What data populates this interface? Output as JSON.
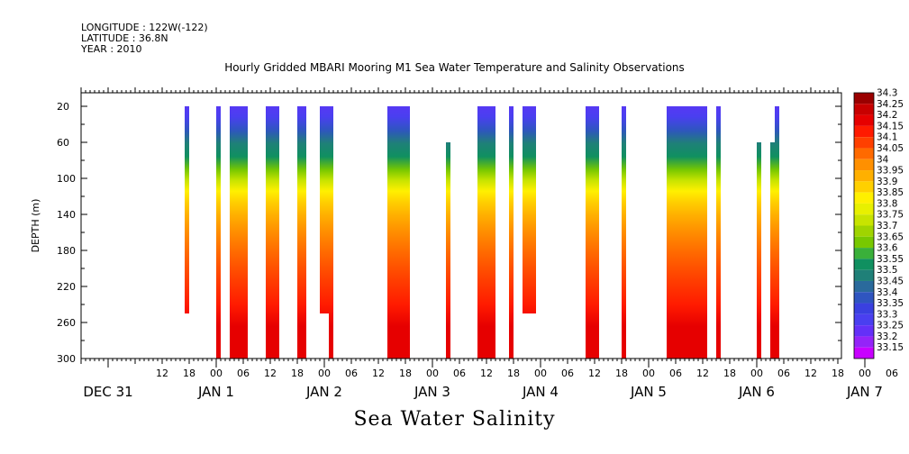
{
  "header": {
    "longitude": "LONGITUDE : 122W(-122)",
    "latitude": "LATITUDE : 36.8N",
    "year": "YEAR : 2010"
  },
  "chart_data": {
    "type": "heatmap",
    "title": "Hourly Gridded MBARI Mooring M1 Sea Water Temperature and Salinity Observations",
    "variable_label": "Sea Water Salinity",
    "ylabel": "DEPTH (m)",
    "ylim": [
      300,
      5
    ],
    "y_ticks": [
      20,
      60,
      100,
      140,
      180,
      220,
      260,
      300
    ],
    "x_hour_ticks": [
      "12",
      "18",
      "00",
      "06",
      "12",
      "18",
      "00",
      "06",
      "12",
      "18",
      "00",
      "06",
      "12",
      "18",
      "00",
      "06",
      "12",
      "18",
      "00",
      "06",
      "12",
      "18",
      "00",
      "06",
      "12",
      "18",
      "00",
      "06",
      "12",
      "18",
      "00",
      "06"
    ],
    "x_day_labels": [
      "DEC 31",
      "JAN  1",
      "JAN  2",
      "JAN  3",
      "JAN  4",
      "JAN  5",
      "JAN  6",
      "JAN  7"
    ],
    "colorbar": {
      "labels": [
        "34.3",
        "34.25",
        "34.2",
        "34.15",
        "34.1",
        "34.05",
        "34",
        "33.95",
        "33.9",
        "33.85",
        "33.8",
        "33.75",
        "33.7",
        "33.65",
        "33.6",
        "33.55",
        "33.5",
        "33.45",
        "33.4",
        "33.35",
        "33.3",
        "33.25",
        "33.2",
        "33.15"
      ],
      "colors": [
        "#9a0000",
        "#c80000",
        "#e60000",
        "#ff1a00",
        "#ff4000",
        "#ff6a00",
        "#ff9000",
        "#ffb000",
        "#ffd000",
        "#fff000",
        "#e8f000",
        "#c8e400",
        "#a0d400",
        "#78c800",
        "#3ab03a",
        "#109060",
        "#1f8078",
        "#2a6a9c",
        "#2f55c0",
        "#3a40e0",
        "#4a3ff0",
        "#6430f8",
        "#9424f8",
        "#c800ff"
      ]
    },
    "profiles": [
      {
        "start_hour": 17,
        "end_hour": 18,
        "top_depth": 20,
        "bottom_depth": 250
      },
      {
        "start_hour": 24,
        "end_hour": 25,
        "top_depth": 20,
        "bottom_depth": 300
      },
      {
        "start_hour": 27,
        "end_hour": 31,
        "top_depth": 20,
        "bottom_depth": 300
      },
      {
        "start_hour": 35,
        "end_hour": 38,
        "top_depth": 20,
        "bottom_depth": 300
      },
      {
        "start_hour": 42,
        "end_hour": 44,
        "top_depth": 20,
        "bottom_depth": 300
      },
      {
        "start_hour": 47,
        "end_hour": 50,
        "top_depth": 20,
        "bottom_depth": 250
      },
      {
        "start_hour": 49,
        "end_hour": 50,
        "top_depth": 20,
        "bottom_depth": 300
      },
      {
        "start_hour": 62,
        "end_hour": 67,
        "top_depth": 20,
        "bottom_depth": 300
      },
      {
        "start_hour": 75,
        "end_hour": 76,
        "top_depth": 60,
        "bottom_depth": 300
      },
      {
        "start_hour": 82,
        "end_hour": 86,
        "top_depth": 20,
        "bottom_depth": 300
      },
      {
        "start_hour": 89,
        "end_hour": 90,
        "top_depth": 20,
        "bottom_depth": 300
      },
      {
        "start_hour": 92,
        "end_hour": 95,
        "top_depth": 20,
        "bottom_depth": 250
      },
      {
        "start_hour": 106,
        "end_hour": 109,
        "top_depth": 20,
        "bottom_depth": 300
      },
      {
        "start_hour": 114,
        "end_hour": 115,
        "top_depth": 20,
        "bottom_depth": 300
      },
      {
        "start_hour": 124,
        "end_hour": 133,
        "top_depth": 20,
        "bottom_depth": 300
      },
      {
        "start_hour": 135,
        "end_hour": 136,
        "top_depth": 20,
        "bottom_depth": 300
      },
      {
        "start_hour": 144,
        "end_hour": 145,
        "top_depth": 60,
        "bottom_depth": 300
      },
      {
        "start_hour": 147,
        "end_hour": 148,
        "top_depth": 60,
        "bottom_depth": 300
      },
      {
        "start_hour": 148,
        "end_hour": 149,
        "top_depth": 20,
        "bottom_depth": 300
      }
    ],
    "grid": false,
    "legend_position": "right"
  }
}
